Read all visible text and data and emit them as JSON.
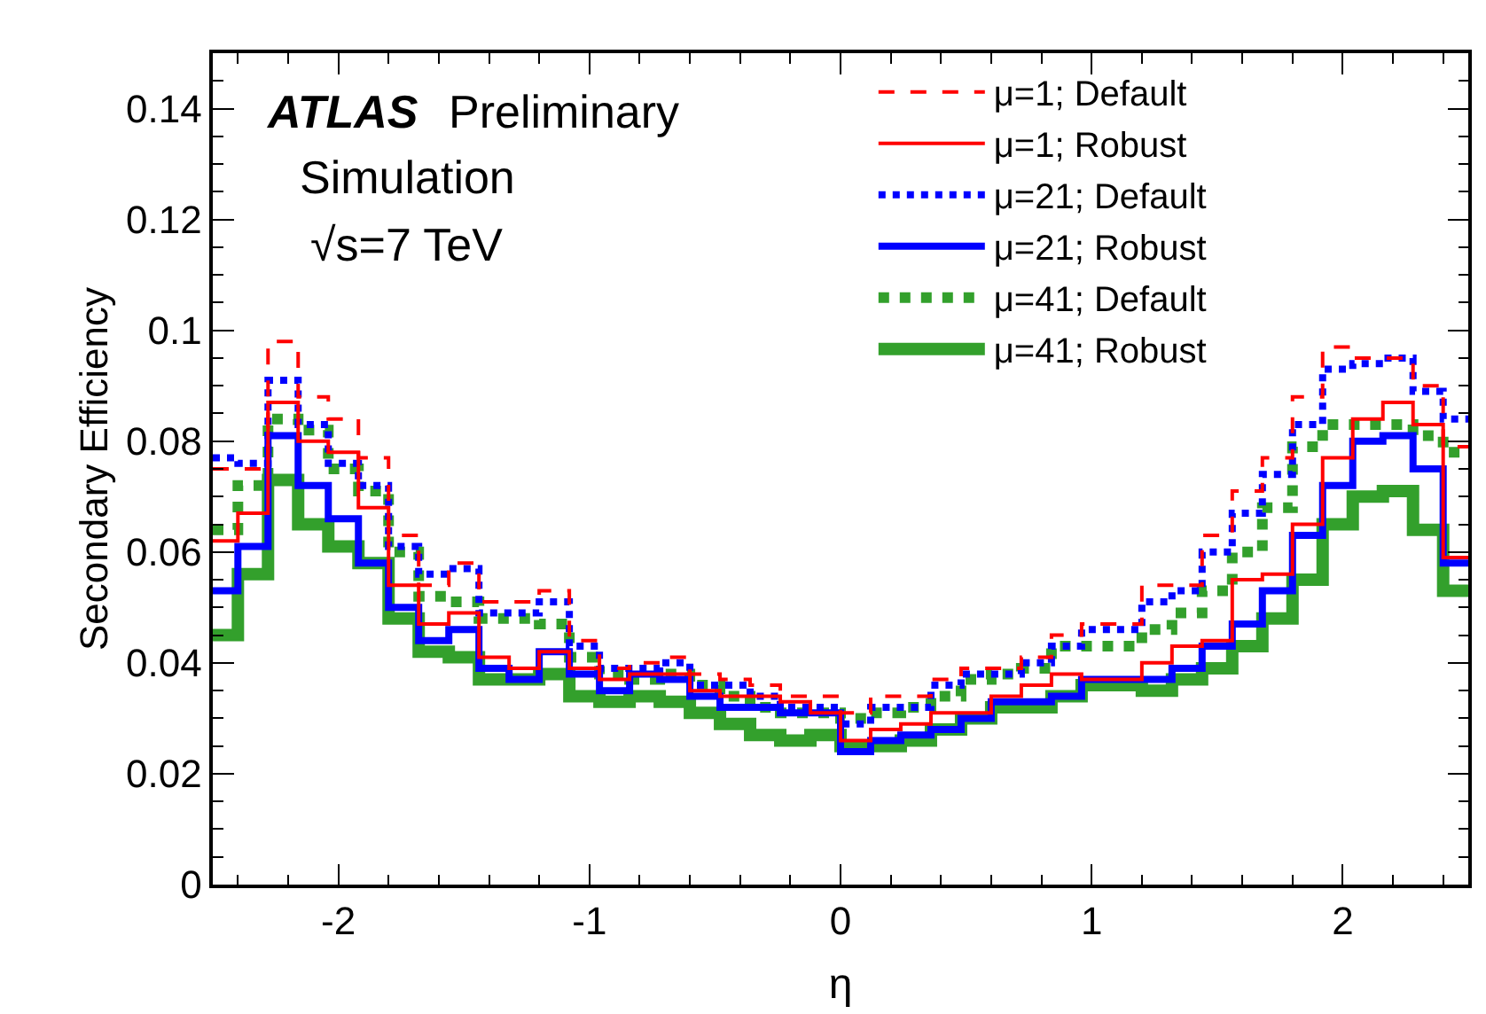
{
  "chart_data": {
    "type": "step",
    "xlabel": "η",
    "ylabel": "Secondary Efficiency",
    "annotations": [
      "ATLAS",
      "Preliminary",
      "Simulation",
      "√s=7 TeV"
    ],
    "x": [
      -2.5,
      -2.4,
      -2.28,
      -2.16,
      -2.04,
      -1.92,
      -1.8,
      -1.68,
      -1.56,
      -1.44,
      -1.32,
      -1.2,
      -1.08,
      -0.96,
      -0.84,
      -0.72,
      -0.6,
      -0.48,
      -0.36,
      -0.24,
      -0.12,
      0,
      0.12,
      0.24,
      0.36,
      0.48,
      0.6,
      0.72,
      0.84,
      0.96,
      1.08,
      1.2,
      1.32,
      1.44,
      1.56,
      1.68,
      1.8,
      1.92,
      2.04,
      2.16,
      2.28,
      2.4,
      2.5
    ],
    "xlim": [
      -2.5,
      2.5
    ],
    "xticks": [
      -2,
      -1,
      0,
      1,
      2
    ],
    "ylim": [
      0,
      0.15
    ],
    "yticks": [
      0,
      0.02,
      0.04,
      0.06,
      0.08,
      0.1,
      0.12,
      0.14
    ],
    "legend": "top right",
    "series": [
      {
        "name": "μ=1; Default",
        "color": "#ff0000",
        "line_style": "dashed",
        "values": [
          0.075,
          0.075,
          0.098,
          0.088,
          0.084,
          0.077,
          0.063,
          0.054,
          0.058,
          0.051,
          0.051,
          0.053,
          0.044,
          0.039,
          0.04,
          0.041,
          0.038,
          0.037,
          0.036,
          0.034,
          0.034,
          0.031,
          0.034,
          0.034,
          0.037,
          0.039,
          0.039,
          0.041,
          0.045,
          0.047,
          0.047,
          0.054,
          0.054,
          0.063,
          0.071,
          0.077,
          0.088,
          0.097,
          0.095,
          0.095,
          0.09,
          0.079,
          0.079
        ]
      },
      {
        "name": "μ=1; Robust",
        "color": "#ff0000",
        "line_style": "solid",
        "values": [
          0.062,
          0.067,
          0.087,
          0.08,
          0.078,
          0.068,
          0.054,
          0.047,
          0.049,
          0.041,
          0.039,
          0.042,
          0.039,
          0.037,
          0.038,
          0.038,
          0.035,
          0.034,
          0.034,
          0.033,
          0.031,
          0.026,
          0.028,
          0.029,
          0.031,
          0.031,
          0.034,
          0.036,
          0.038,
          0.037,
          0.037,
          0.04,
          0.043,
          0.044,
          0.055,
          0.056,
          0.065,
          0.077,
          0.084,
          0.087,
          0.083,
          0.059,
          0.059
        ]
      },
      {
        "name": "μ=21; Default",
        "color": "#0000ff",
        "line_style": "dotted",
        "values": [
          0.077,
          0.076,
          0.091,
          0.083,
          0.076,
          0.072,
          0.061,
          0.056,
          0.057,
          0.049,
          0.049,
          0.051,
          0.043,
          0.039,
          0.039,
          0.04,
          0.036,
          0.036,
          0.034,
          0.032,
          0.032,
          0.029,
          0.032,
          0.032,
          0.036,
          0.038,
          0.038,
          0.04,
          0.043,
          0.046,
          0.046,
          0.051,
          0.053,
          0.06,
          0.067,
          0.074,
          0.083,
          0.093,
          0.094,
          0.095,
          0.089,
          0.084,
          0.084
        ]
      },
      {
        "name": "μ=21; Robust",
        "color": "#0000ff",
        "line_style": "solid",
        "values": [
          0.053,
          0.061,
          0.081,
          0.072,
          0.066,
          0.058,
          0.05,
          0.044,
          0.046,
          0.039,
          0.037,
          0.042,
          0.038,
          0.035,
          0.038,
          0.037,
          0.034,
          0.032,
          0.032,
          0.031,
          0.031,
          0.024,
          0.026,
          0.027,
          0.028,
          0.03,
          0.033,
          0.033,
          0.034,
          0.037,
          0.037,
          0.037,
          0.039,
          0.043,
          0.047,
          0.053,
          0.063,
          0.072,
          0.08,
          0.081,
          0.075,
          0.058,
          0.058
        ]
      },
      {
        "name": "μ=41; Default",
        "color": "#33a02c",
        "line_style": "dotted",
        "values": [
          0.064,
          0.072,
          0.084,
          0.082,
          0.075,
          0.071,
          0.06,
          0.052,
          0.051,
          0.048,
          0.048,
          0.047,
          0.041,
          0.038,
          0.037,
          0.038,
          0.036,
          0.034,
          0.032,
          0.031,
          0.031,
          0.03,
          0.031,
          0.032,
          0.034,
          0.037,
          0.038,
          0.039,
          0.043,
          0.043,
          0.043,
          0.046,
          0.049,
          0.053,
          0.06,
          0.068,
          0.079,
          0.083,
          0.083,
          0.083,
          0.081,
          0.078,
          0.078
        ]
      },
      {
        "name": "μ=41; Robust",
        "color": "#33a02c",
        "line_style": "solid",
        "values": [
          0.045,
          0.056,
          0.073,
          0.065,
          0.061,
          0.058,
          0.048,
          0.042,
          0.041,
          0.037,
          0.037,
          0.038,
          0.034,
          0.033,
          0.034,
          0.033,
          0.031,
          0.029,
          0.027,
          0.026,
          0.027,
          0.025,
          0.025,
          0.026,
          0.028,
          0.03,
          0.032,
          0.032,
          0.034,
          0.036,
          0.036,
          0.035,
          0.037,
          0.039,
          0.043,
          0.048,
          0.055,
          0.065,
          0.07,
          0.071,
          0.064,
          0.053,
          0.053
        ]
      }
    ]
  }
}
